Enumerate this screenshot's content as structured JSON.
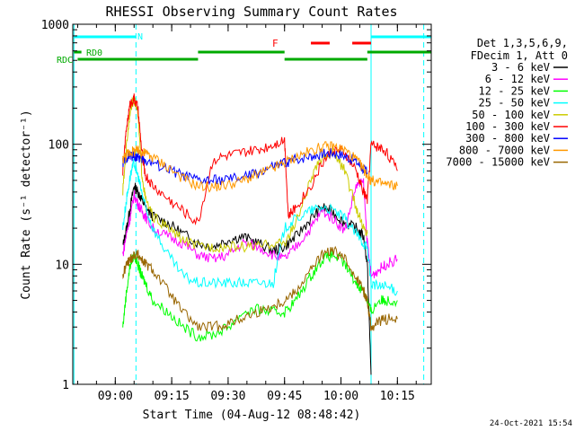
{
  "colors": {
    "axis": "#000000",
    "night_marker": "#00ffff",
    "rate_bars": "#00aa00",
    "flare_flag": "#ff0000"
  },
  "chart_data": {
    "type": "line",
    "title": "RHESSI Observing Summary Count Rates",
    "xlabel": "Start Time (04-Aug-12 08:48:42)",
    "ylabel": "Count Rate (s⁻¹ detector⁻¹)",
    "y_scale": "log",
    "ylim": [
      1,
      1000
    ],
    "xlim": [
      "08:48:42",
      "10:24:00"
    ],
    "x_ticks": [
      "09:00",
      "09:15",
      "09:30",
      "09:45",
      "10:00",
      "10:15"
    ],
    "y_ticks": [
      "1",
      "10",
      "100",
      "1000"
    ],
    "grid": false,
    "legend_position": "right",
    "legend_header": [
      "Det 1,3,5,6,9,",
      "FDecim 1, Att 0"
    ],
    "footer_date": "24-Oct-2021 15:54",
    "annotations": {
      "night_label": "N",
      "flare_label": "F",
      "rd0_label": "RD0",
      "rdc_label": "RDC"
    },
    "vertical_markers": [
      {
        "time": "08:49:00",
        "style": "solid",
        "color": "#00ffff"
      },
      {
        "time": "09:05:30",
        "style": "dashed",
        "color": "#00ffff"
      },
      {
        "time": "10:08:00",
        "style": "solid",
        "color": "#00ffff"
      },
      {
        "time": "10:22:00",
        "style": "dashed",
        "color": "#00ffff"
      }
    ],
    "status_bars": [
      {
        "name": "N",
        "color": "#00ffff",
        "segments": [
          [
            "08:49:00",
            "09:05:30"
          ],
          [
            "10:08:00",
            "10:24:00"
          ]
        ]
      },
      {
        "name": "F",
        "color": "#ff0000",
        "segments": [
          [
            "09:52:00",
            "09:57:00"
          ],
          [
            "10:03:00",
            "10:08:00"
          ]
        ]
      },
      {
        "name": "RD0",
        "color": "#00aa00",
        "segments": [
          [
            "08:49:00",
            "08:51:00"
          ],
          [
            "09:22:00",
            "09:45:00"
          ],
          [
            "10:07:00",
            "10:24:00"
          ]
        ]
      },
      {
        "name": "RDC",
        "color": "#00aa00",
        "segments": [
          [
            "08:50:00",
            "09:22:00"
          ],
          [
            "09:45:00",
            "10:07:00"
          ]
        ]
      }
    ],
    "series": [
      {
        "name": "3 - 6 keV",
        "color": "#000000",
        "x": [
          "09:02",
          "09:03",
          "09:04",
          "09:05",
          "09:06",
          "09:07",
          "09:08",
          "09:10",
          "09:14",
          "09:18",
          "09:22",
          "09:26",
          "09:30",
          "09:34",
          "09:38",
          "09:42",
          "09:45",
          "09:48",
          "09:52",
          "09:55",
          "09:58",
          "10:01",
          "10:04",
          "10:06",
          "10:07",
          "10:08"
        ],
        "y": [
          14,
          20,
          30,
          45,
          40,
          35,
          30,
          25,
          22,
          18,
          15,
          14,
          16,
          17,
          15,
          13,
          14,
          17,
          24,
          30,
          27,
          22,
          20,
          17,
          10,
          1.2
        ]
      },
      {
        "name": "6 - 12 keV",
        "color": "#ff00ff",
        "x": [
          "09:02",
          "09:03",
          "09:04",
          "09:05",
          "09:06",
          "09:07",
          "09:08",
          "09:10",
          "09:14",
          "09:18",
          "09:22",
          "09:26",
          "09:30",
          "09:34",
          "09:38",
          "09:42",
          "09:45",
          "09:48",
          "09:52",
          "09:55",
          "09:58",
          "10:01",
          "10:04",
          "10:06",
          "10:07",
          "10:08",
          "10:10",
          "10:12",
          "10:15"
        ],
        "y": [
          12,
          18,
          25,
          38,
          32,
          28,
          25,
          20,
          17,
          15,
          12,
          11,
          12,
          15,
          14,
          12,
          11,
          14,
          20,
          28,
          24,
          19,
          45,
          48,
          15,
          8,
          9,
          10,
          11
        ]
      },
      {
        "name": "12 - 25 keV",
        "color": "#00ff00",
        "x": [
          "09:02",
          "09:03",
          "09:04",
          "09:05",
          "09:06",
          "09:07",
          "09:08",
          "09:10",
          "09:14",
          "09:18",
          "09:22",
          "09:26",
          "09:30",
          "09:34",
          "09:38",
          "09:42",
          "09:45",
          "09:48",
          "09:52",
          "09:55",
          "09:58",
          "10:01",
          "10:04",
          "10:06",
          "10:07",
          "10:08",
          "10:10",
          "10:12",
          "10:15"
        ],
        "y": [
          3,
          6,
          10,
          12,
          10,
          8,
          7,
          5,
          4,
          3,
          2.5,
          2.6,
          3,
          4,
          4.2,
          4,
          4,
          5,
          8,
          11,
          12,
          10,
          7,
          6,
          5,
          4,
          5,
          5,
          5
        ]
      },
      {
        "name": "25 - 50 keV",
        "color": "#00ffff",
        "x": [
          "09:02",
          "09:03",
          "09:04",
          "09:05",
          "09:06",
          "09:07",
          "09:08",
          "09:10",
          "09:14",
          "09:18",
          "09:22",
          "09:26",
          "09:30",
          "09:34",
          "09:38",
          "09:42",
          "09:45",
          "09:48",
          "09:52",
          "09:55",
          "09:58",
          "10:01",
          "10:04",
          "10:06",
          "10:07",
          "10:08",
          "10:10",
          "10:12",
          "10:15"
        ],
        "y": [
          20,
          35,
          55,
          70,
          55,
          40,
          30,
          20,
          12,
          8,
          7,
          7,
          7,
          7,
          7,
          7,
          20,
          24,
          28,
          30,
          28,
          24,
          18,
          15,
          14,
          7,
          6.5,
          6.5,
          6
        ]
      },
      {
        "name": "50 - 100 keV",
        "color": "#cccc00",
        "x": [
          "09:02",
          "09:03",
          "09:04",
          "09:05",
          "09:06",
          "09:07",
          "09:08",
          "09:10",
          "09:14",
          "09:18",
          "09:22",
          "09:26",
          "09:30",
          "09:34",
          "09:38",
          "09:42",
          "09:45",
          "09:48",
          "09:52",
          "09:55",
          "09:58",
          "10:01",
          "10:04",
          "10:06",
          "10:07"
        ],
        "y": [
          40,
          100,
          200,
          240,
          180,
          60,
          35,
          25,
          20,
          16,
          14,
          14,
          14,
          14,
          14,
          15,
          15,
          22,
          50,
          80,
          85,
          60,
          30,
          20,
          18
        ]
      },
      {
        "name": "100 - 300 keV",
        "color": "#ff0000",
        "x": [
          "09:02",
          "09:03",
          "09:04",
          "09:05",
          "09:06",
          "09:07",
          "09:08",
          "09:10",
          "09:14",
          "09:18",
          "09:22",
          "09:26",
          "09:30",
          "09:34",
          "09:38",
          "09:42",
          "09:45",
          "09:46",
          "09:48",
          "09:52",
          "09:55",
          "09:58",
          "10:01",
          "10:04",
          "10:06",
          "10:07",
          "10:08",
          "10:10",
          "10:12",
          "10:15"
        ],
        "y": [
          60,
          140,
          220,
          240,
          200,
          90,
          55,
          45,
          35,
          28,
          22,
          75,
          80,
          85,
          90,
          100,
          110,
          25,
          30,
          45,
          70,
          90,
          85,
          60,
          40,
          35,
          100,
          95,
          88,
          60
        ]
      },
      {
        "name": "300 - 800 keV",
        "color": "#0000ff",
        "x": [
          "09:02",
          "09:03",
          "09:04",
          "09:05",
          "09:06",
          "09:07",
          "09:08",
          "09:10",
          "09:14",
          "09:18",
          "09:22",
          "09:26",
          "09:30",
          "09:34",
          "09:38",
          "09:42",
          "09:45",
          "09:48",
          "09:52",
          "09:55",
          "09:58",
          "10:01",
          "10:04",
          "10:06",
          "10:07"
        ],
        "y": [
          70,
          78,
          80,
          80,
          78,
          76,
          74,
          70,
          62,
          55,
          50,
          50,
          51,
          53,
          58,
          65,
          70,
          75,
          80,
          84,
          85,
          80,
          72,
          62,
          58
        ]
      },
      {
        "name": "800 - 7000 keV",
        "color": "#ff9900",
        "x": [
          "09:02",
          "09:03",
          "09:04",
          "09:05",
          "09:06",
          "09:07",
          "09:08",
          "09:10",
          "09:14",
          "09:18",
          "09:22",
          "09:26",
          "09:30",
          "09:34",
          "09:38",
          "09:42",
          "09:45",
          "09:48",
          "09:52",
          "09:55",
          "09:58",
          "10:01",
          "10:04",
          "10:06",
          "10:07",
          "10:08",
          "10:10",
          "10:12",
          "10:15"
        ],
        "y": [
          75,
          82,
          86,
          88,
          88,
          86,
          84,
          78,
          65,
          52,
          45,
          44,
          46,
          50,
          56,
          63,
          70,
          78,
          88,
          95,
          96,
          90,
          75,
          62,
          55,
          50,
          48,
          46,
          45
        ]
      },
      {
        "name": "7000 - 15000 keV",
        "color": "#996600",
        "x": [
          "09:02",
          "09:03",
          "09:04",
          "09:05",
          "09:06",
          "09:07",
          "09:08",
          "09:10",
          "09:14",
          "09:18",
          "09:22",
          "09:26",
          "09:30",
          "09:34",
          "09:38",
          "09:42",
          "09:45",
          "09:48",
          "09:52",
          "09:55",
          "09:58",
          "10:01",
          "10:04",
          "10:06",
          "10:07",
          "10:08",
          "10:10",
          "10:12",
          "10:15"
        ],
        "y": [
          8,
          10,
          11,
          12,
          12,
          11,
          10,
          9,
          6,
          4,
          3,
          3,
          3.2,
          3.6,
          4,
          4.5,
          5,
          6,
          9,
          12,
          13,
          11,
          8,
          6,
          5,
          3,
          3.3,
          3.5,
          3.5
        ]
      }
    ]
  }
}
